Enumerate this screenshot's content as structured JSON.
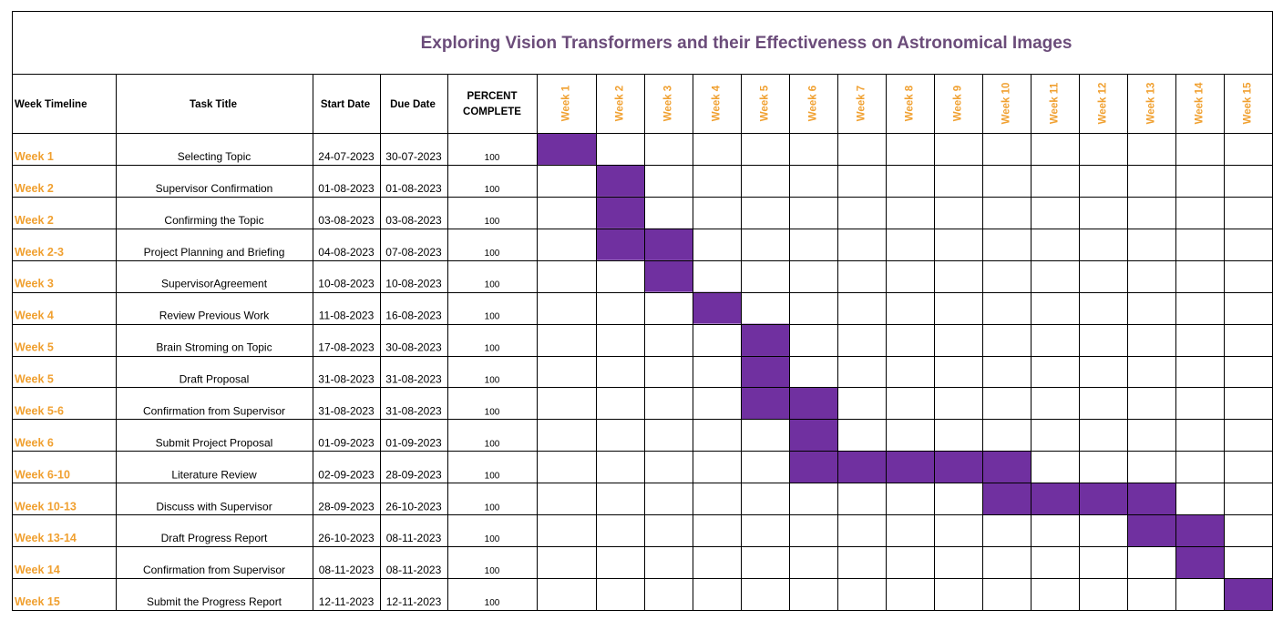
{
  "title": "Exploring Vision Transformers and their Effectiveness on Astronomical Images",
  "headers": {
    "week_timeline": "Week Timeline",
    "task_title": "Task Title",
    "start_date": "Start Date",
    "due_date": "Due Date",
    "percent_line1": "PERCENT",
    "percent_line2": "COMPLETE"
  },
  "colors": {
    "bar": "#7030a0",
    "title": "#6b4c7a",
    "week_label": "#f0a030",
    "grid": "#000000"
  },
  "chart_data": {
    "type": "gantt",
    "x": [
      "Week 1",
      "Week 2",
      "Week 3",
      "Week 4",
      "Week 5",
      "Week 6",
      "Week 7",
      "Week 8",
      "Week 9",
      "Week 10",
      "Week 11",
      "Week 12",
      "Week 13",
      "Week 14",
      "Week 15"
    ],
    "tasks": [
      {
        "timeline": "Week 1",
        "title": "Selecting Topic",
        "start": "24-07-2023",
        "due": "30-07-2023",
        "percent": "100",
        "start_week": 1,
        "end_week": 1
      },
      {
        "timeline": "Week 2",
        "title": "Supervisor Confirmation",
        "start": "01-08-2023",
        "due": "01-08-2023",
        "percent": "100",
        "start_week": 2,
        "end_week": 2
      },
      {
        "timeline": "Week 2",
        "title": "Confirming the Topic",
        "start": "03-08-2023",
        "due": "03-08-2023",
        "percent": "100",
        "start_week": 2,
        "end_week": 2
      },
      {
        "timeline": "Week 2-3",
        "title": "Project Planning and Briefing",
        "start": "04-08-2023",
        "due": "07-08-2023",
        "percent": "100",
        "start_week": 2,
        "end_week": 3
      },
      {
        "timeline": "Week 3",
        "title": "SupervisorAgreement",
        "start": "10-08-2023",
        "due": "10-08-2023",
        "percent": "100",
        "start_week": 3,
        "end_week": 3
      },
      {
        "timeline": "Week 4",
        "title": "Review Previous Work",
        "start": "11-08-2023",
        "due": "16-08-2023",
        "percent": "100",
        "start_week": 4,
        "end_week": 4
      },
      {
        "timeline": "Week 5",
        "title": "Brain Stroming on Topic",
        "start": "17-08-2023",
        "due": "30-08-2023",
        "percent": "100",
        "start_week": 5,
        "end_week": 5
      },
      {
        "timeline": "Week 5",
        "title": "Draft Proposal",
        "start": "31-08-2023",
        "due": "31-08-2023",
        "percent": "100",
        "start_week": 5,
        "end_week": 5
      },
      {
        "timeline": "Week 5-6",
        "title": "Confirmation from Supervisor",
        "start": "31-08-2023",
        "due": "31-08-2023",
        "percent": "100",
        "start_week": 5,
        "end_week": 6
      },
      {
        "timeline": "Week 6",
        "title": "Submit Project Proposal",
        "start": "01-09-2023",
        "due": "01-09-2023",
        "percent": "100",
        "start_week": 6,
        "end_week": 6
      },
      {
        "timeline": "Week 6-10",
        "title": "Literature Review",
        "start": "02-09-2023",
        "due": "28-09-2023",
        "percent": "100",
        "start_week": 6,
        "end_week": 10
      },
      {
        "timeline": "Week 10-13",
        "title": "Discuss with Supervisor",
        "start": "28-09-2023",
        "due": "26-10-2023",
        "percent": "100",
        "start_week": 10,
        "end_week": 13
      },
      {
        "timeline": "Week 13-14",
        "title": "Draft Progress Report",
        "start": "26-10-2023",
        "due": "08-11-2023",
        "percent": "100",
        "start_week": 13,
        "end_week": 14
      },
      {
        "timeline": "Week 14",
        "title": "Confirmation from Supervisor",
        "start": "08-11-2023",
        "due": "08-11-2023",
        "percent": "100",
        "start_week": 14,
        "end_week": 14
      },
      {
        "timeline": "Week 15",
        "title": "Submit the Progress Report",
        "start": "12-11-2023",
        "due": "12-11-2023",
        "percent": "100",
        "start_week": 15,
        "end_week": 15
      }
    ]
  }
}
